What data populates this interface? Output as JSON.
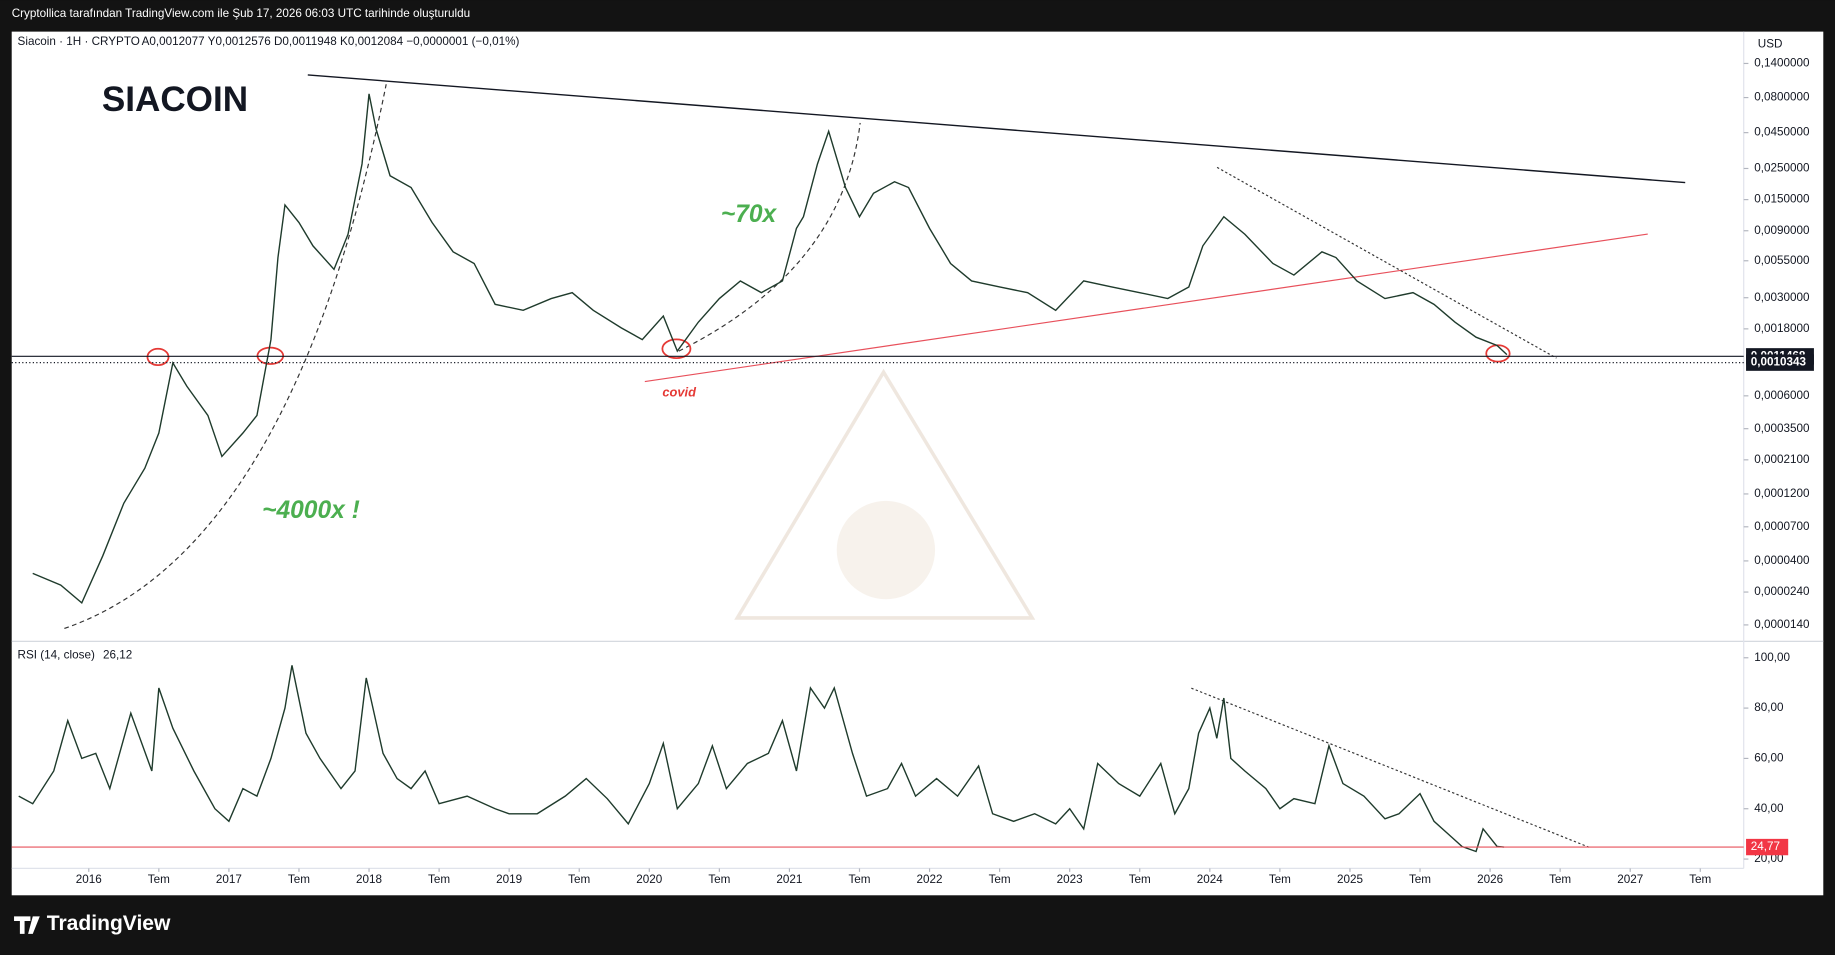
{
  "header": "Cryptollica tarafından TradingView.com ile Şub 17, 2026 06:03 UTC tarihinde oluşturuldu",
  "footer": "TradingView",
  "chart_data": [
    {
      "type": "line",
      "title": "SIACOIN",
      "subtitle": "Siacoin · 1H · CRYPTO",
      "legend_text": "A0,0012077 Y0,0012576 D0,0011948 K0,0012084 −0,0000001 (−0,01%)",
      "currency": "USD",
      "log_scale": true,
      "color": "#1f3b2c",
      "annotations": [
        "~70x",
        "~4000x !",
        "covid"
      ],
      "xlim": [
        2015.45,
        2027.81
      ],
      "ylim": [
        1.09e-05,
        0.236
      ],
      "yticks": [
        {
          "value": 0.14,
          "label": "0,1400000"
        },
        {
          "value": 0.08,
          "label": "0,0800000"
        },
        {
          "value": 0.045,
          "label": "0,0450000"
        },
        {
          "value": 0.025,
          "label": "0,0250000"
        },
        {
          "value": 0.015,
          "label": "0,0150000"
        },
        {
          "value": 0.009,
          "label": "0,0090000"
        },
        {
          "value": 0.0055,
          "label": "0,0055000"
        },
        {
          "value": 0.003,
          "label": "0,0030000"
        },
        {
          "value": 0.0018,
          "label": "0,0018000"
        },
        {
          "value": 0.0006,
          "label": "0,0006000"
        },
        {
          "value": 0.00035,
          "label": "0,0003500"
        },
        {
          "value": 0.00021,
          "label": "0,0002100"
        },
        {
          "value": 0.00012,
          "label": "0,0001200"
        },
        {
          "value": 7e-05,
          "label": "0,0000700"
        },
        {
          "value": 4e-05,
          "label": "0,0000400"
        },
        {
          "value": 2.4e-05,
          "label": "0,0000240"
        },
        {
          "value": 1.4e-05,
          "label": "0,0000140"
        }
      ],
      "price_labels": [
        {
          "value": 0.0011468,
          "label": "0,0011468"
        },
        {
          "value": 0.0010343,
          "label": "0,0010343"
        }
      ],
      "x": [
        2015.6,
        2015.8,
        2015.95,
        2016.1,
        2016.25,
        2016.4,
        2016.5,
        2016.6,
        2016.7,
        2016.85,
        2016.95,
        2017.1,
        2017.2,
        2017.3,
        2017.35,
        2017.4,
        2017.5,
        2017.6,
        2017.75,
        2017.85,
        2017.95,
        2018.0,
        2018.05,
        2018.15,
        2018.3,
        2018.45,
        2018.6,
        2018.75,
        2018.9,
        2019.1,
        2019.3,
        2019.45,
        2019.6,
        2019.8,
        2019.95,
        2020.1,
        2020.2,
        2020.35,
        2020.5,
        2020.65,
        2020.8,
        2020.95,
        2021.05,
        2021.1,
        2021.2,
        2021.28,
        2021.4,
        2021.5,
        2021.6,
        2021.75,
        2021.85,
        2022.0,
        2022.15,
        2022.3,
        2022.5,
        2022.7,
        2022.9,
        2023.1,
        2023.3,
        2023.5,
        2023.7,
        2023.85,
        2023.95,
        2024.1,
        2024.25,
        2024.45,
        2024.6,
        2024.8,
        2024.9,
        2025.05,
        2025.25,
        2025.45,
        2025.6,
        2025.75,
        2025.9,
        2026.05,
        2026.12
      ],
      "values": [
        3.26e-05,
        2.69e-05,
        2.01e-05,
        4.35e-05,
        0.000103,
        0.000183,
        0.000326,
        0.00103,
        0.000702,
        0.000435,
        0.000222,
        0.000326,
        0.000435,
        0.00151,
        0.0058,
        0.01375,
        0.0103,
        0.00702,
        0.00478,
        0.0085,
        0.0269,
        0.085,
        0.0478,
        0.0222,
        0.0183,
        0.0103,
        0.00637,
        0.00526,
        0.00269,
        0.00244,
        0.00296,
        0.00326,
        0.00244,
        0.00183,
        0.00151,
        0.00222,
        0.00125,
        0.00201,
        0.00296,
        0.00395,
        0.00326,
        0.00395,
        0.00936,
        0.01133,
        0.0269,
        0.046,
        0.0183,
        0.01133,
        0.01665,
        0.0201,
        0.0183,
        0.00936,
        0.00526,
        0.00395,
        0.00358,
        0.00326,
        0.00244,
        0.00395,
        0.00358,
        0.00326,
        0.00296,
        0.00358,
        0.00702,
        0.01133,
        0.0085,
        0.00526,
        0.00435,
        0.00637,
        0.0058,
        0.00395,
        0.00296,
        0.00326,
        0.00269,
        0.00201,
        0.00157,
        0.00137,
        0.00118
      ]
    },
    {
      "type": "line",
      "title": "RSI (14, close)",
      "current": "26,12",
      "color": "#1f3b2c",
      "xlim": [
        2015.45,
        2027.81
      ],
      "ylim": [
        16.3,
        105.6
      ],
      "yticks": [
        {
          "value": 100,
          "label": "100,00"
        },
        {
          "value": 80,
          "label": "80,00"
        },
        {
          "value": 60,
          "label": "60,00"
        },
        {
          "value": 40,
          "label": "40,00"
        },
        {
          "value": 20,
          "label": "20,00"
        }
      ],
      "level": {
        "value": 24.77,
        "label": "24,77"
      },
      "xticks": [
        {
          "value": 2016,
          "label": "2016"
        },
        {
          "value": 2016.5,
          "label": "Tem"
        },
        {
          "value": 2017,
          "label": "2017"
        },
        {
          "value": 2017.5,
          "label": "Tem"
        },
        {
          "value": 2018,
          "label": "2018"
        },
        {
          "value": 2018.5,
          "label": "Tem"
        },
        {
          "value": 2019,
          "label": "2019"
        },
        {
          "value": 2019.5,
          "label": "Tem"
        },
        {
          "value": 2020,
          "label": "2020"
        },
        {
          "value": 2020.5,
          "label": "Tem"
        },
        {
          "value": 2021,
          "label": "2021"
        },
        {
          "value": 2021.5,
          "label": "Tem"
        },
        {
          "value": 2022,
          "label": "2022"
        },
        {
          "value": 2022.5,
          "label": "Tem"
        },
        {
          "value": 2023,
          "label": "2023"
        },
        {
          "value": 2023.5,
          "label": "Tem"
        },
        {
          "value": 2024,
          "label": "2024"
        },
        {
          "value": 2024.5,
          "label": "Tem"
        },
        {
          "value": 2025,
          "label": "2025"
        },
        {
          "value": 2025.5,
          "label": "Tem"
        },
        {
          "value": 2026,
          "label": "2026"
        },
        {
          "value": 2026.5,
          "label": "Tem"
        },
        {
          "value": 2027,
          "label": "2027"
        },
        {
          "value": 2027.5,
          "label": "Tem"
        }
      ],
      "x": [
        2015.5,
        2015.6,
        2015.75,
        2015.85,
        2015.95,
        2016.05,
        2016.15,
        2016.3,
        2016.45,
        2016.5,
        2016.6,
        2016.75,
        2016.9,
        2017.0,
        2017.1,
        2017.2,
        2017.3,
        2017.4,
        2017.45,
        2017.55,
        2017.65,
        2017.8,
        2017.9,
        2017.98,
        2018.1,
        2018.2,
        2018.3,
        2018.4,
        2018.5,
        2018.7,
        2018.9,
        2019.0,
        2019.2,
        2019.4,
        2019.55,
        2019.7,
        2019.85,
        2020.0,
        2020.1,
        2020.2,
        2020.35,
        2020.45,
        2020.55,
        2020.7,
        2020.85,
        2020.95,
        2021.05,
        2021.15,
        2021.25,
        2021.32,
        2021.45,
        2021.55,
        2021.7,
        2021.8,
        2021.9,
        2022.05,
        2022.2,
        2022.35,
        2022.45,
        2022.6,
        2022.75,
        2022.9,
        2023.0,
        2023.1,
        2023.2,
        2023.35,
        2023.5,
        2023.65,
        2023.75,
        2023.85,
        2023.92,
        2024.0,
        2024.05,
        2024.1,
        2024.15,
        2024.25,
        2024.4,
        2024.5,
        2024.6,
        2024.75,
        2024.85,
        2024.95,
        2025.1,
        2025.25,
        2025.35,
        2025.5,
        2025.6,
        2025.7,
        2025.8,
        2025.9,
        2025.95,
        2026.05,
        2026.1
      ],
      "values": [
        45,
        42,
        55,
        75,
        60,
        62,
        48,
        78,
        55,
        88,
        72,
        55,
        40,
        35,
        48,
        45,
        60,
        80,
        97,
        70,
        60,
        48,
        55,
        92,
        62,
        52,
        48,
        55,
        42,
        45,
        40,
        38,
        38,
        45,
        52,
        44,
        34,
        50,
        66,
        40,
        50,
        65,
        48,
        58,
        62,
        75,
        55,
        88,
        80,
        88,
        62,
        45,
        48,
        58,
        45,
        52,
        45,
        57,
        38,
        35,
        38,
        34,
        40,
        32,
        58,
        50,
        45,
        58,
        38,
        48,
        70,
        80,
        68,
        84,
        60,
        55,
        48,
        40,
        44,
        42,
        65,
        50,
        45,
        36,
        38,
        46,
        35,
        30,
        25,
        23,
        32,
        25,
        24.77
      ]
    }
  ]
}
